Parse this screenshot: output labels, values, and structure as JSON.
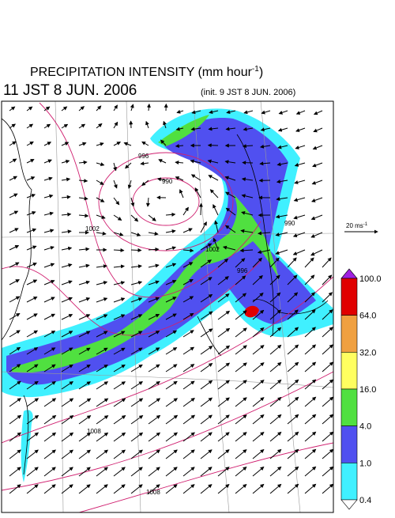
{
  "header": {
    "title_main": "PRECIPITATION INTENSITY (mm hour",
    "title_sup": "-1",
    "title_end": ")",
    "valid_time": "11 JST 8 JUN. 2006",
    "init_time": "(init. 9 JST 8 JUN. 2006)"
  },
  "wind_legend": {
    "label": "20 ms",
    "sup": "-1"
  },
  "colorbar": {
    "labels": [
      "100.0",
      "64.0",
      "32.0",
      "16.0",
      "4.0",
      "1.0",
      "0.4"
    ],
    "colors": [
      "#e00000",
      "#f0a040",
      "#ffff60",
      "#50e040",
      "#5050f0",
      "#40f0ff"
    ],
    "over_color": "#a020e0",
    "under_color": "#ffffff"
  },
  "isobar_labels": [
    "990",
    "996",
    "1002",
    "1008",
    "1008",
    "1002",
    "996",
    "990"
  ]
}
